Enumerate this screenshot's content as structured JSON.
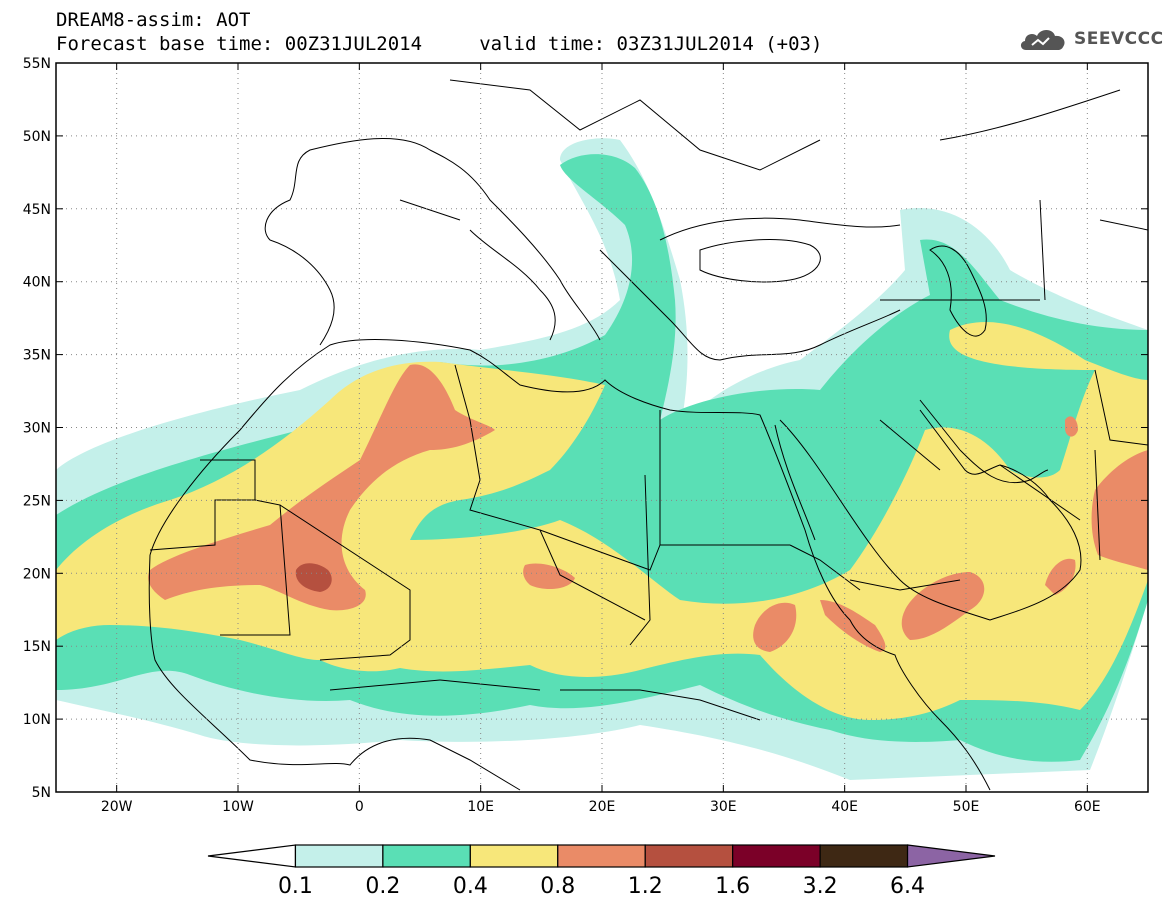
{
  "title": {
    "line1": "DREAM8-assim: AOT",
    "line2": "Forecast base time: 00Z31JUL2014     valid time: 03Z31JUL2014 (+03)"
  },
  "brand": {
    "text": "SEEVCCC",
    "icon": "cloud-icon"
  },
  "map": {
    "lon_range": [
      -25,
      65
    ],
    "lat_range": [
      5,
      55
    ],
    "lat_ticks": [
      {
        "value": 55,
        "label": "55N"
      },
      {
        "value": 50,
        "label": "50N"
      },
      {
        "value": 45,
        "label": "45N"
      },
      {
        "value": 40,
        "label": "40N"
      },
      {
        "value": 35,
        "label": "35N"
      },
      {
        "value": 30,
        "label": "30N"
      },
      {
        "value": 25,
        "label": "25N"
      },
      {
        "value": 20,
        "label": "20N"
      },
      {
        "value": 15,
        "label": "15N"
      },
      {
        "value": 10,
        "label": "10N"
      },
      {
        "value": 5,
        "label": "5N"
      }
    ],
    "lon_ticks": [
      {
        "value": -20,
        "label": "20W"
      },
      {
        "value": -10,
        "label": "10W"
      },
      {
        "value": 0,
        "label": "0"
      },
      {
        "value": 10,
        "label": "10E"
      },
      {
        "value": 20,
        "label": "20E"
      },
      {
        "value": 30,
        "label": "30E"
      },
      {
        "value": 40,
        "label": "40E"
      },
      {
        "value": 50,
        "label": "50E"
      },
      {
        "value": 60,
        "label": "60E"
      }
    ],
    "grid": true
  },
  "colorbar": {
    "labels": [
      "0.1",
      "0.2",
      "0.4",
      "0.8",
      "1.2",
      "1.6",
      "3.2",
      "6.4"
    ],
    "colors": [
      "#ffffff",
      "#c4f0ea",
      "#5adfb5",
      "#f7e77a",
      "#ea8b67",
      "#b5503f",
      "#7b0028",
      "#3e2814",
      "#8c64a4"
    ]
  }
}
